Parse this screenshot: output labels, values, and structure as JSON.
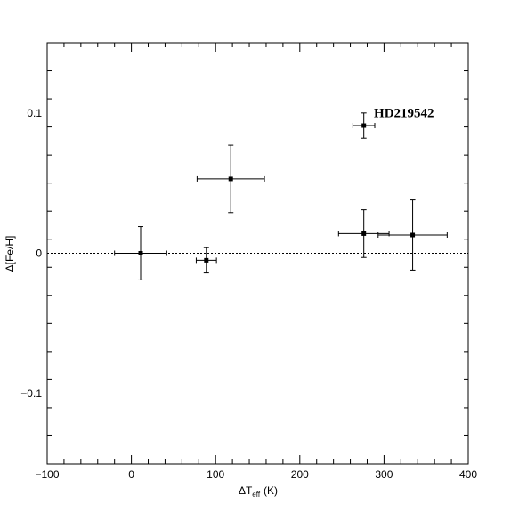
{
  "chart_data": {
    "type": "scatter",
    "xlim": [
      -100,
      400
    ],
    "ylim": [
      -0.15,
      0.15
    ],
    "x_major_ticks": [
      -100,
      0,
      100,
      200,
      300,
      400
    ],
    "y_major_ticks": [
      -0.1,
      0,
      0.1
    ],
    "x_tick_labels": [
      "−100",
      "0",
      "100",
      "200",
      "300",
      "400"
    ],
    "y_tick_labels": [
      "−0.1",
      "0",
      "0.1"
    ],
    "xlabel_main": "ΔT",
    "xlabel_sub": "eff",
    "xlabel_unit": "(K)",
    "ylabel": "Δ[Fe/H]",
    "reference_line_y": 0,
    "grid": false,
    "points": [
      {
        "x": 11,
        "y": 0.0,
        "xerr": 31,
        "yerr": 0.019
      },
      {
        "x": 89,
        "y": -0.005,
        "xerr": 12,
        "yerr": 0.009
      },
      {
        "x": 118,
        "y": 0.053,
        "xerr": 40,
        "yerr": 0.024
      },
      {
        "x": 276,
        "y": 0.091,
        "xerr": 13,
        "yerr": 0.009
      },
      {
        "x": 276,
        "y": 0.014,
        "xerr": 30,
        "yerr": 0.017
      },
      {
        "x": 334,
        "y": 0.013,
        "xerr": 41,
        "yerr": 0.025
      }
    ],
    "annotations": [
      {
        "text": "HD219542",
        "x": 288,
        "y": 0.097
      }
    ]
  }
}
